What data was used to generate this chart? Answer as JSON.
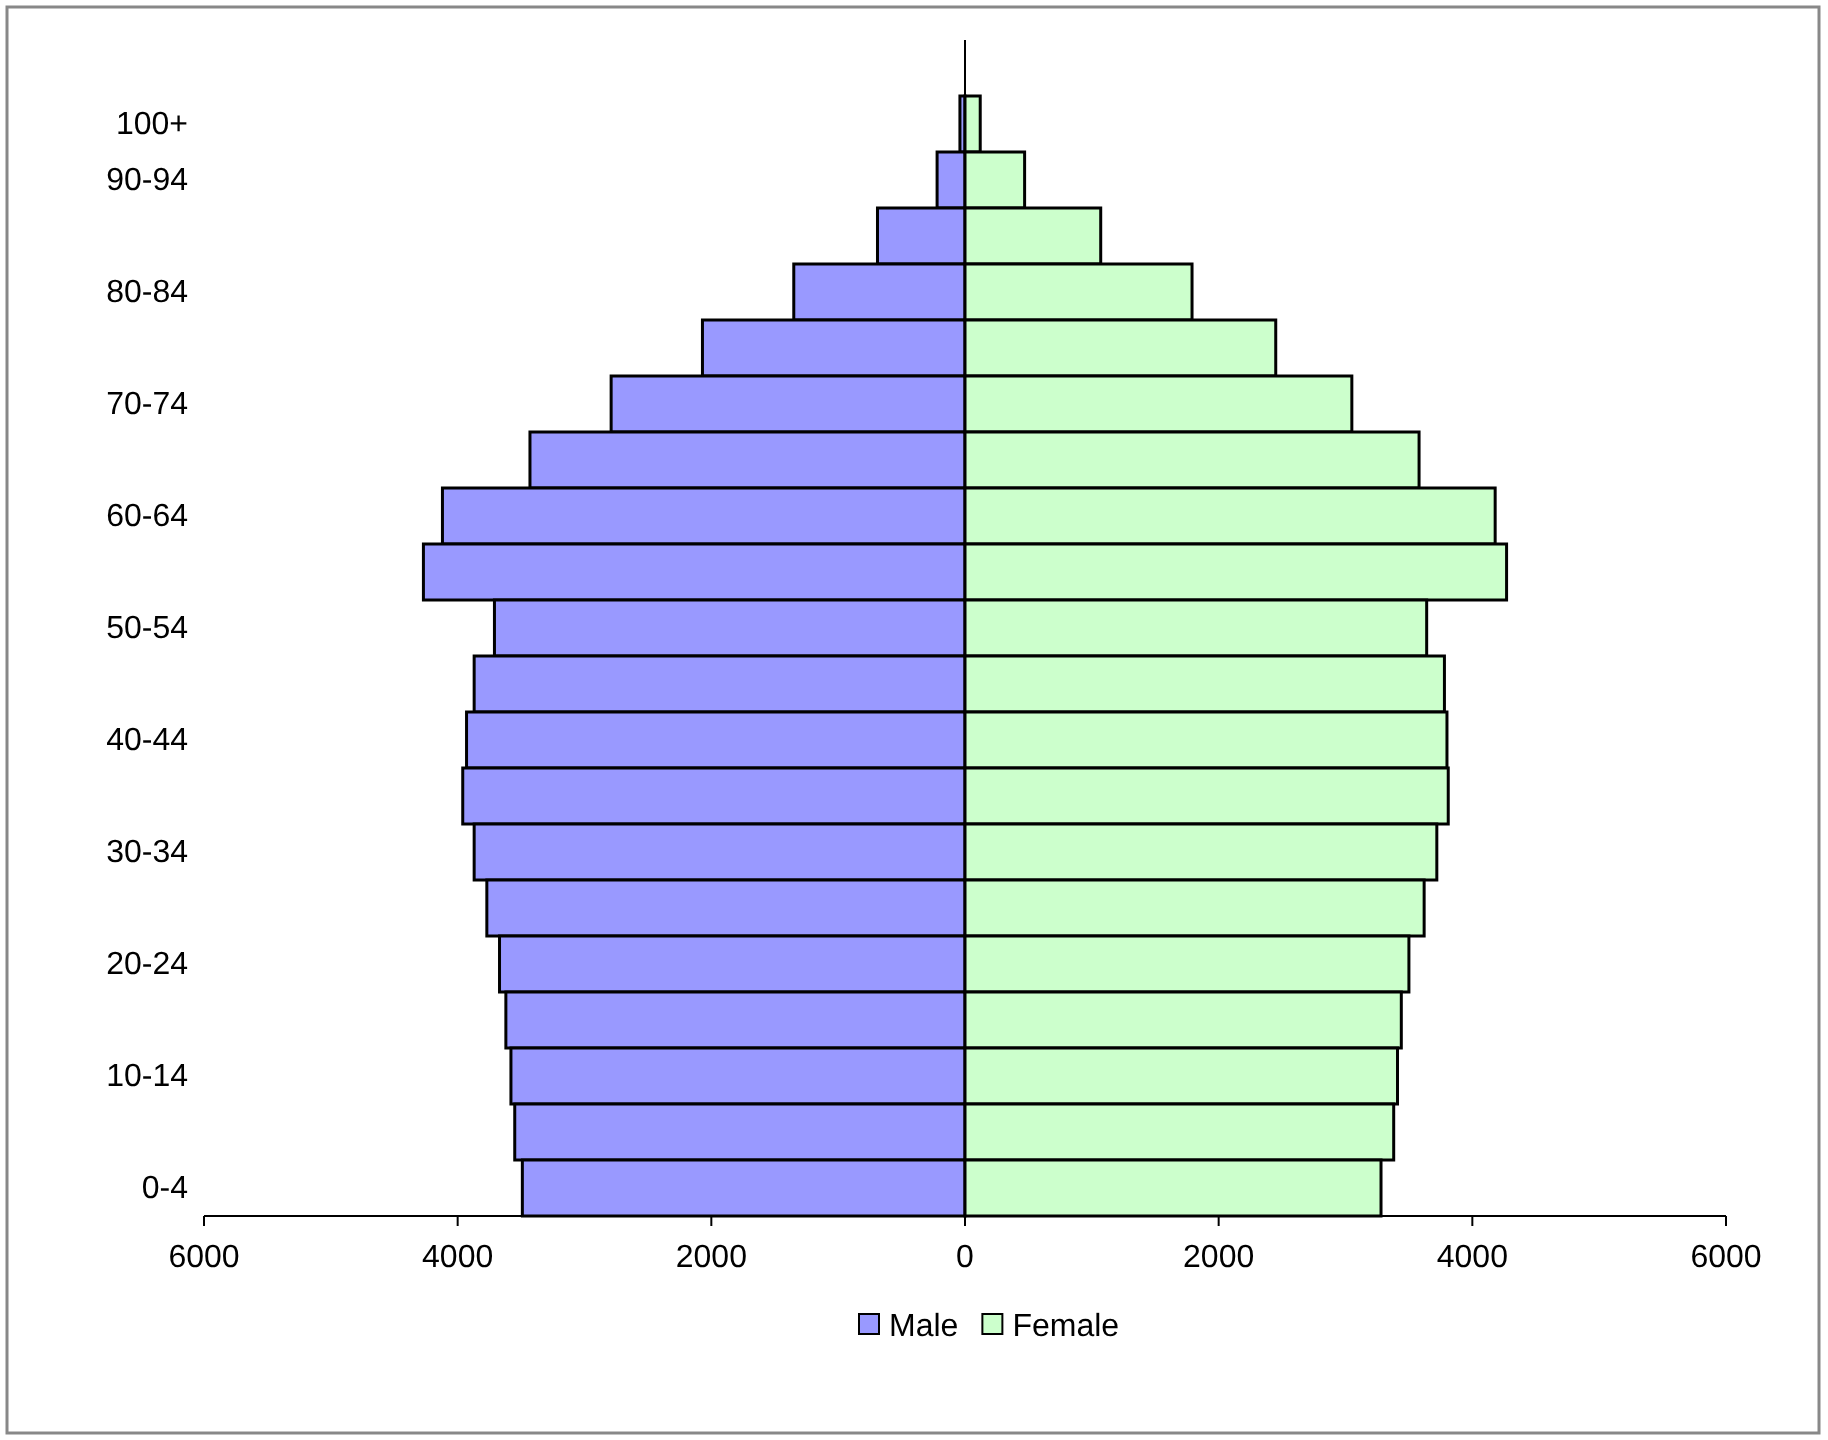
{
  "chart_data": {
    "type": "bar",
    "orientation": "horizontal",
    "stacked": true,
    "categories": [
      "100+",
      "90-94",
      null,
      "80-84",
      null,
      "70-74",
      null,
      "60-64",
      null,
      "50-54",
      null,
      "40-44",
      null,
      "30-34",
      null,
      "20-24",
      null,
      "10-14",
      null,
      "0-4"
    ],
    "series": [
      {
        "name": "Male",
        "color": "#9999ff",
        "values": [
          -40,
          -220,
          -690,
          -1350,
          -2070,
          -2790,
          -3430,
          -4120,
          -4270,
          -3710,
          -3870,
          -3930,
          -3960,
          -3870,
          -3770,
          -3670,
          -3620,
          -3580,
          -3550,
          -3490
        ]
      },
      {
        "name": "Female",
        "color": "#ccffcc",
        "values": [
          120,
          470,
          1070,
          1790,
          2450,
          3050,
          3580,
          4180,
          4270,
          3640,
          3780,
          3800,
          3810,
          3720,
          3620,
          3500,
          3440,
          3410,
          3380,
          3280
        ]
      }
    ],
    "xlim": [
      -6000,
      6000
    ],
    "xticks": [
      {
        "value": -6000,
        "label": "6000"
      },
      {
        "value": -4000,
        "label": "4000"
      },
      {
        "value": -2000,
        "label": "2000"
      },
      0,
      2000,
      4000,
      6000
    ],
    "legend": "bottom"
  }
}
